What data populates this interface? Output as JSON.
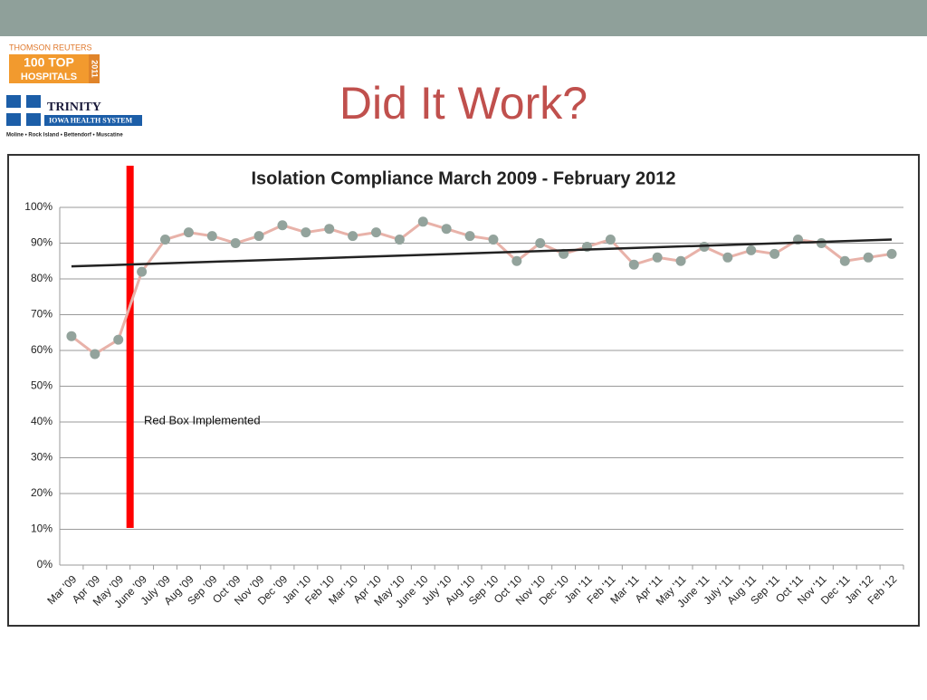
{
  "header": {
    "logo_top": "THOMSON REUTERS",
    "logo_line1": "100 TOP",
    "logo_line2": "HOSPITALS",
    "logo_year": "2011",
    "org_name": "TRINITY",
    "org_sub": "IOWA HEALTH SYSTEM",
    "org_locations": "Moline • Rock Island • Bettendorf • Muscatine",
    "title": "Did It Work?"
  },
  "chart_data": {
    "type": "line",
    "title": "Isolation Compliance March 2009 - February 2012",
    "categories": [
      "Mar '09",
      "Apr '09",
      "May '09",
      "June '09",
      "July '09",
      "Aug '09",
      "Sep '09",
      "Oct '09",
      "Nov '09",
      "Dec '09",
      "Jan '10",
      "Feb '10",
      "Mar '10",
      "Apr '10",
      "May '10",
      "June '10",
      "July '10",
      "Aug '10",
      "Sep '10",
      "Oct '10",
      "Nov '10",
      "Dec '10",
      "Jan '11",
      "Feb '11",
      "Mar '11",
      "Apr '11",
      "May '11",
      "June '11",
      "July '11",
      "Aug '11",
      "Sep '11",
      "Oct '11",
      "Nov '11",
      "Dec '11",
      "Jan '12",
      "Feb '12"
    ],
    "series": [
      {
        "name": "Isolation Compliance",
        "color": "#e8b2a9",
        "marker_color": "#93a39c",
        "values": [
          64,
          59,
          63,
          82,
          91,
          93,
          92,
          90,
          92,
          95,
          93,
          94,
          92,
          93,
          91,
          96,
          94,
          92,
          91,
          85,
          90,
          87,
          89,
          91,
          84,
          86,
          85,
          89,
          86,
          88,
          87,
          91,
          90,
          85,
          86,
          87
        ]
      }
    ],
    "trendline": {
      "color": "#222222",
      "start": 83.5,
      "end": 91
    },
    "annotation": "Red Box Implemented",
    "marker_line_color": "#ff0000",
    "ylim": [
      0,
      100
    ],
    "yticks": [
      {
        "value": 0,
        "label": "0%"
      },
      {
        "value": 10,
        "label": "10%"
      },
      {
        "value": 20,
        "label": "20%"
      },
      {
        "value": 30,
        "label": "30%"
      },
      {
        "value": 40,
        "label": "40%"
      },
      {
        "value": 50,
        "label": "50%"
      },
      {
        "value": 60,
        "label": "60%"
      },
      {
        "value": 70,
        "label": "70%"
      },
      {
        "value": 80,
        "label": "80%"
      },
      {
        "value": 90,
        "label": "90%"
      },
      {
        "value": 100,
        "label": "100%"
      }
    ],
    "grid": true
  }
}
